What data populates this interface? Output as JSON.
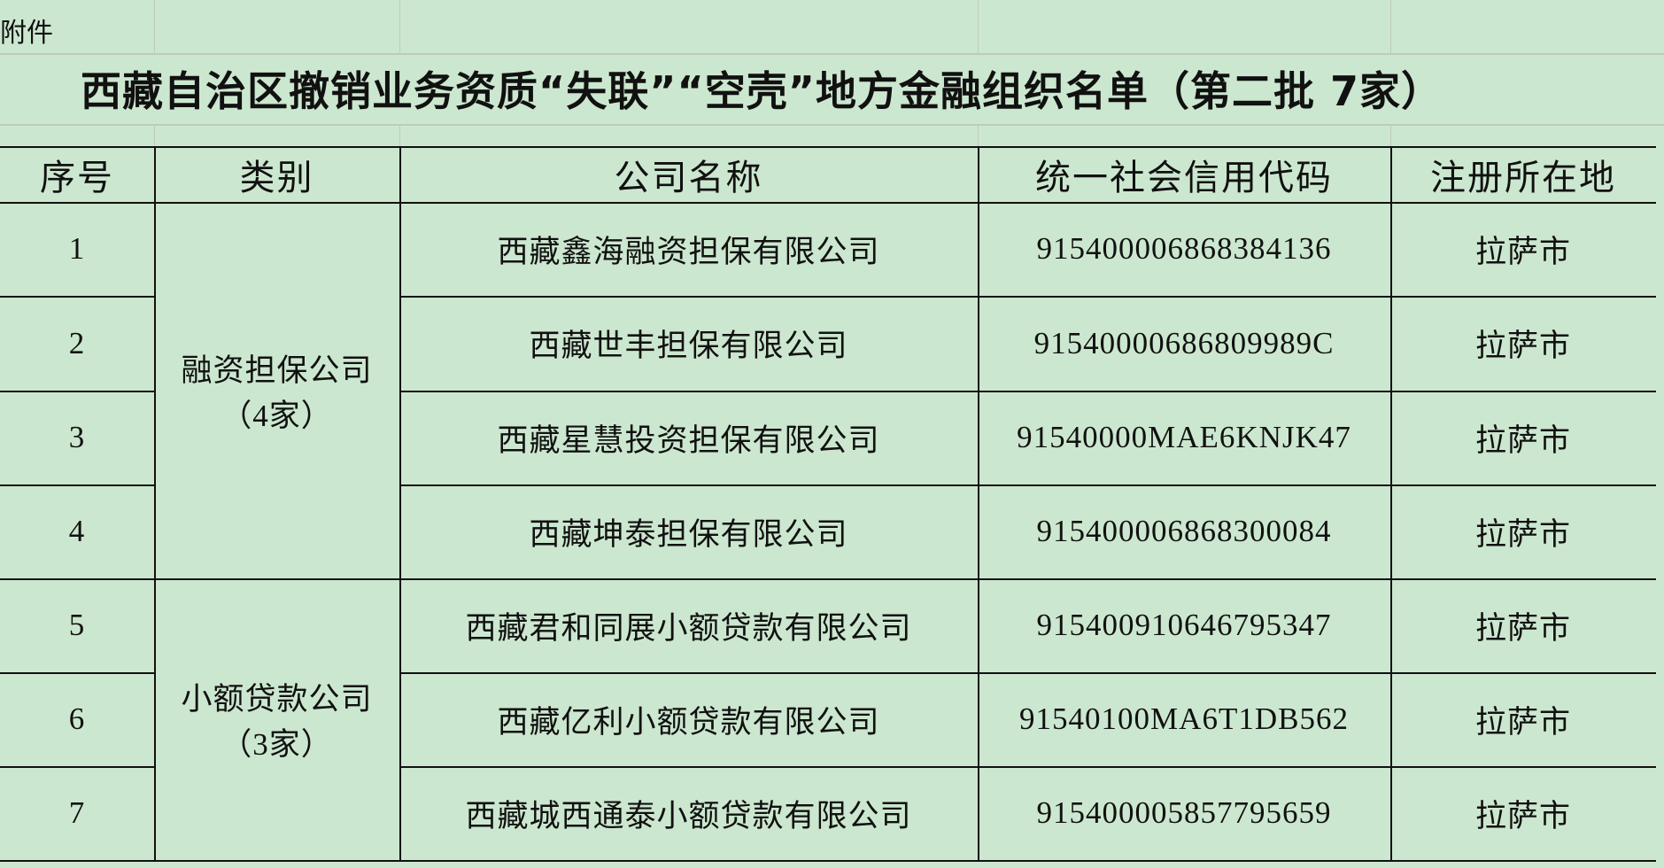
{
  "attachment_label": "附件",
  "title": "西藏自治区撤销业务资质“失联”“空壳”地方金融组织名单（第二批 7家）",
  "table": {
    "headers": [
      "序号",
      "类别",
      "公司名称",
      "统一社会信用代码",
      "注册所在地"
    ],
    "categories": [
      {
        "name": "融资担保公司",
        "count": "（4家）"
      },
      {
        "name": "小额贷款公司",
        "count": "（3家）"
      }
    ],
    "rows": [
      {
        "no": "1",
        "name": "西藏鑫海融资担保有限公司",
        "code": "915400006868384136",
        "location": "拉萨市"
      },
      {
        "no": "2",
        "name": "西藏世丰担保有限公司",
        "code": "91540000686809989C",
        "location": "拉萨市"
      },
      {
        "no": "3",
        "name": "西藏星慧投资担保有限公司",
        "code": "91540000MAE6KNJK47",
        "location": "拉萨市"
      },
      {
        "no": "4",
        "name": "西藏坤泰担保有限公司",
        "code": "915400006868300084",
        "location": "拉萨市"
      },
      {
        "no": "5",
        "name": "西藏君和同展小额贷款有限公司",
        "code": "915400910646795347",
        "location": "拉萨市"
      },
      {
        "no": "6",
        "name": "西藏亿利小额贷款有限公司",
        "code": "91540100MA6T1DB562",
        "location": "拉萨市"
      },
      {
        "no": "7",
        "name": "西藏城西通泰小额贷款有限公司",
        "code": "915400005857795659",
        "location": "拉萨市"
      }
    ]
  },
  "colors": {
    "background": "#cce7cf",
    "border": "#111111",
    "gridline": "#bfc9c0"
  }
}
